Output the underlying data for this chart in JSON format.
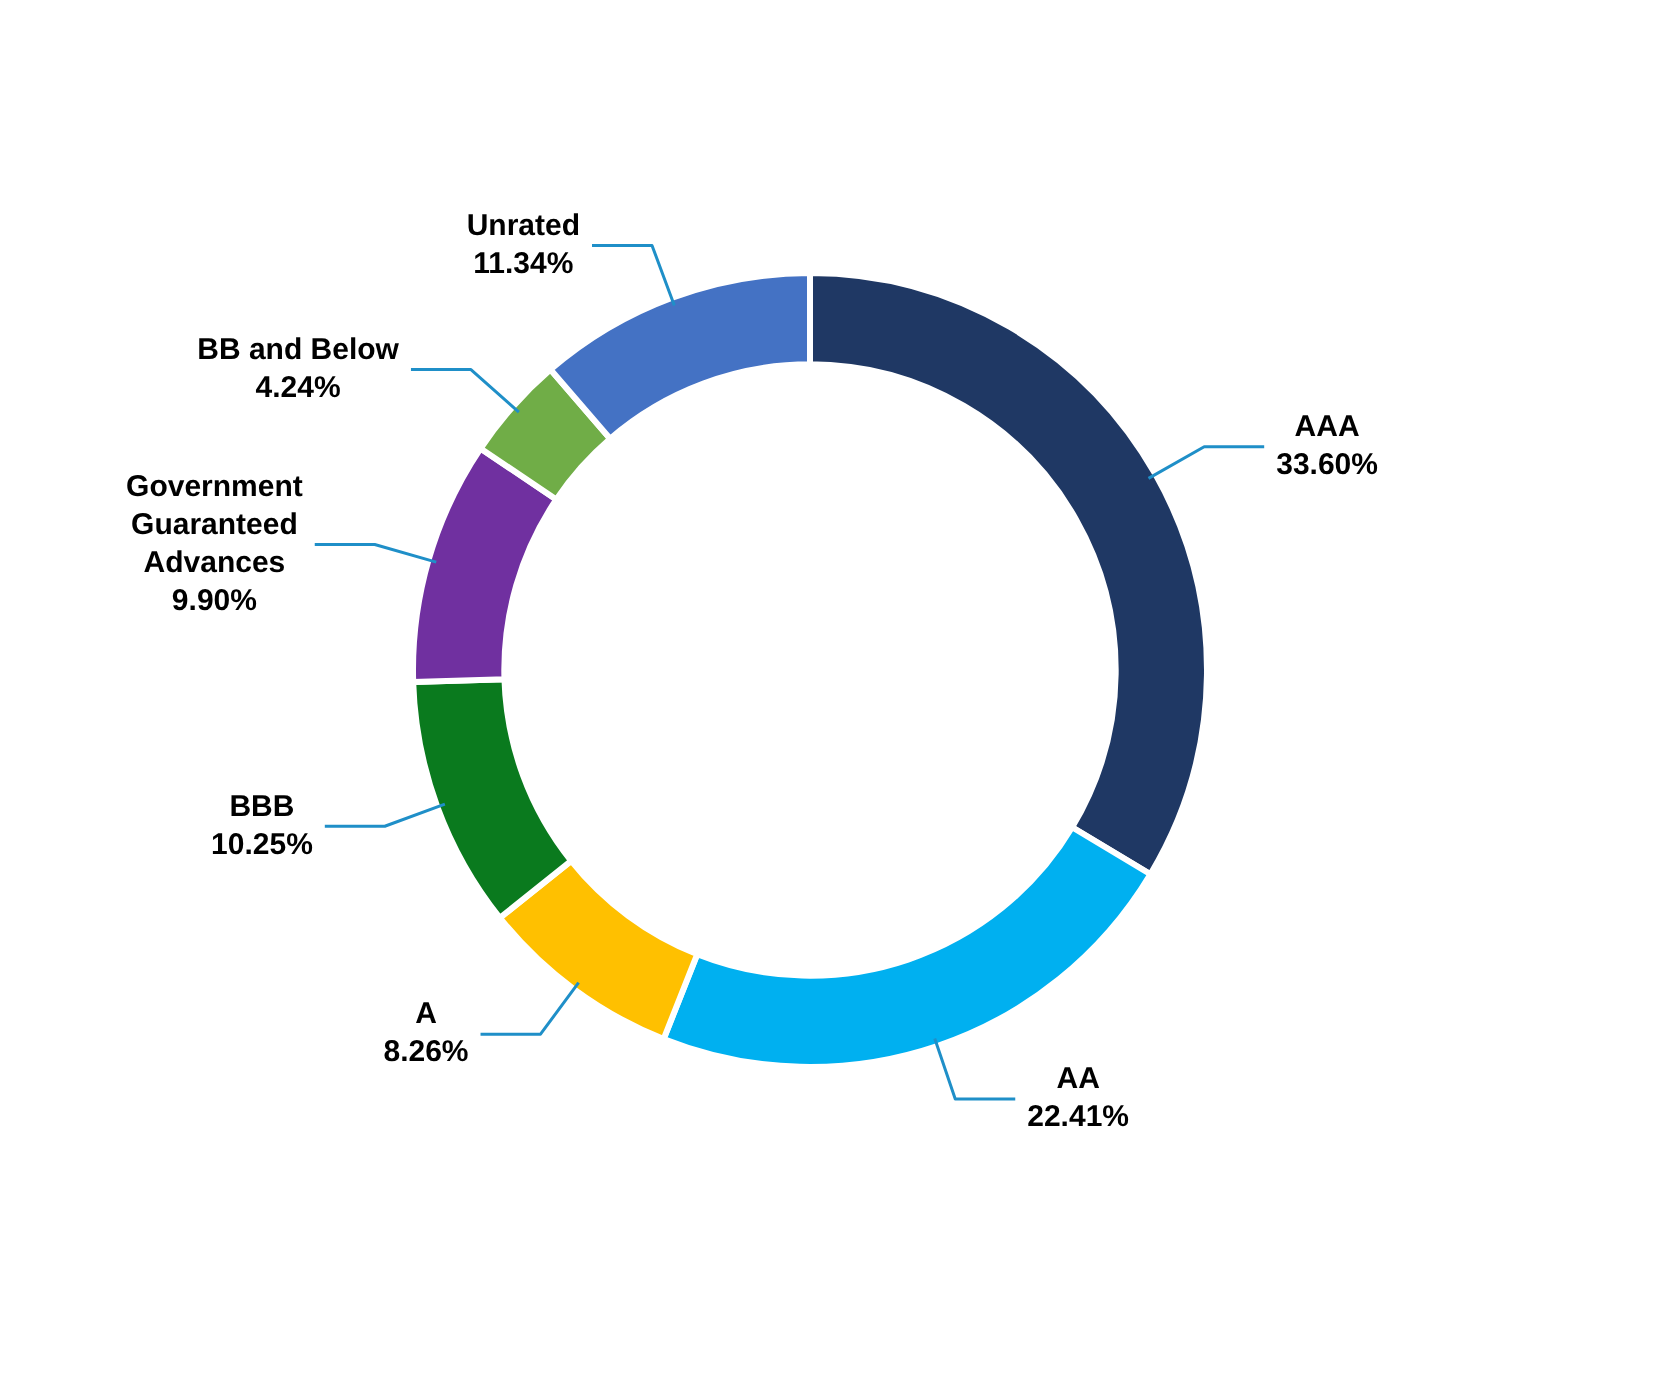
{
  "chart_data": {
    "type": "donut",
    "categories": [
      "AAA",
      "AA",
      "A",
      "BBB",
      "Government Guaranteed Advances",
      "BB and Below",
      "Unrated"
    ],
    "values": [
      33.6,
      22.41,
      8.26,
      10.25,
      9.9,
      4.24,
      11.34
    ],
    "value_labels": [
      "33.60%",
      "22.41%",
      "8.26%",
      "10.25%",
      "9.90%",
      "4.24%",
      "11.34%"
    ],
    "colors": [
      "#1f3864",
      "#00b0f0",
      "#ffc000",
      "#0a7a1e",
      "#7030a0",
      "#70ad47",
      "#4472c4"
    ],
    "legend": false
  }
}
